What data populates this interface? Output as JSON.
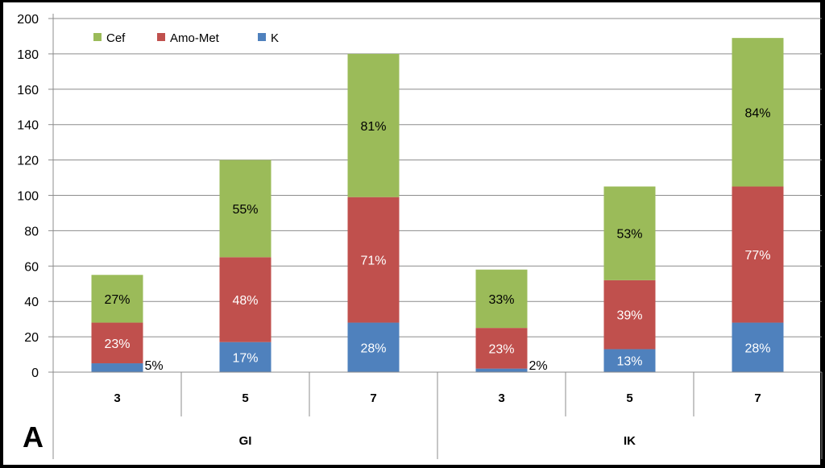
{
  "chart_data": {
    "type": "bar",
    "stacked": true,
    "panel_label": "A",
    "groups": [
      "GI",
      "IK"
    ],
    "categories": [
      "3",
      "5",
      "7",
      "3",
      "5",
      "7"
    ],
    "category_group": [
      0,
      0,
      0,
      1,
      1,
      1
    ],
    "ylim": [
      0,
      200
    ],
    "yticks": [
      0,
      20,
      40,
      60,
      80,
      100,
      120,
      140,
      160,
      180,
      200
    ],
    "grid": true,
    "legend_position": "top-left",
    "series": [
      {
        "name": "K",
        "color": "#4F81BD",
        "values": [
          5,
          17,
          28,
          2,
          13,
          28
        ],
        "labels": [
          "5%",
          "17%",
          "28%",
          "2%",
          "13%",
          "28%"
        ]
      },
      {
        "name": "Amo-Met",
        "color": "#C0504D",
        "values": [
          23,
          48,
          71,
          23,
          39,
          77
        ],
        "labels": [
          "23%",
          "48%",
          "71%",
          "23%",
          "39%",
          "77%"
        ]
      },
      {
        "name": "Cef",
        "color": "#9BBB59",
        "values": [
          27,
          55,
          81,
          33,
          53,
          84
        ],
        "labels": [
          "27%",
          "55%",
          "81%",
          "33%",
          "53%",
          "84%"
        ]
      }
    ],
    "legend_order": [
      "Cef",
      "Amo-Met",
      "K"
    ]
  }
}
